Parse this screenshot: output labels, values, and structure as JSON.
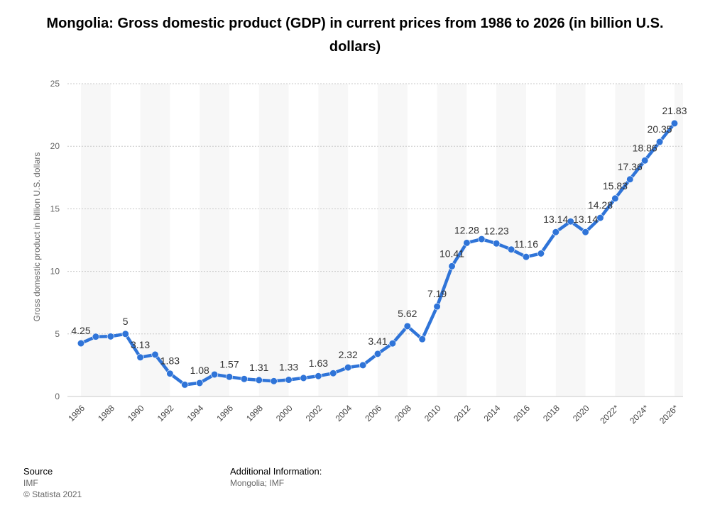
{
  "chart_data": {
    "type": "line",
    "title": "Mongolia: Gross domestic product (GDP) in current prices from 1986 to 2026 (in billion U.S. dollars)",
    "xlabel": "",
    "ylabel": "Gross domestic product in billion U.S. dollars",
    "ylim": [
      0,
      25
    ],
    "yticks": [
      0,
      5,
      10,
      15,
      20,
      25
    ],
    "grid": true,
    "xtick_labels": [
      "1986",
      "1988",
      "1990",
      "1992",
      "1994",
      "1996",
      "1998",
      "2000",
      "2002",
      "2004",
      "2006",
      "2008",
      "2010",
      "2012",
      "2014",
      "2016",
      "2018",
      "2020",
      "2022*",
      "2024*",
      "2026*"
    ],
    "categories": [
      "1986",
      "1987",
      "1988",
      "1989",
      "1990",
      "1991",
      "1992",
      "1993",
      "1994",
      "1995",
      "1996",
      "1997",
      "1998",
      "1999",
      "2000",
      "2001",
      "2002",
      "2003",
      "2004",
      "2005",
      "2006",
      "2007",
      "2008",
      "2009",
      "2010",
      "2011",
      "2012",
      "2013",
      "2014",
      "2015",
      "2016",
      "2017",
      "2018",
      "2019",
      "2020",
      "2021",
      "2022*",
      "2023*",
      "2024*",
      "2025*",
      "2026*"
    ],
    "series": [
      {
        "name": "GDP in billion U.S. dollars",
        "color": "#2f74d8",
        "values": [
          4.25,
          4.78,
          4.8,
          5.0,
          3.13,
          3.35,
          1.83,
          0.94,
          1.08,
          1.76,
          1.57,
          1.4,
          1.31,
          1.23,
          1.33,
          1.48,
          1.63,
          1.86,
          2.32,
          2.5,
          3.41,
          4.24,
          5.62,
          4.58,
          7.19,
          10.41,
          12.28,
          12.58,
          12.23,
          11.75,
          11.16,
          11.43,
          13.14,
          13.99,
          13.14,
          14.28,
          15.83,
          17.36,
          18.86,
          20.35,
          21.83
        ]
      }
    ],
    "data_labels": [
      {
        "x": "1986",
        "text": "4.25"
      },
      {
        "x": "1989",
        "text": "5"
      },
      {
        "x": "1990",
        "text": "3.13"
      },
      {
        "x": "1992",
        "text": "1.83"
      },
      {
        "x": "1994",
        "text": "1.08"
      },
      {
        "x": "1996",
        "text": "1.57"
      },
      {
        "x": "1998",
        "text": "1.31"
      },
      {
        "x": "2000",
        "text": "1.33"
      },
      {
        "x": "2002",
        "text": "1.63"
      },
      {
        "x": "2004",
        "text": "2.32"
      },
      {
        "x": "2006",
        "text": "3.41"
      },
      {
        "x": "2008",
        "text": "5.62"
      },
      {
        "x": "2010",
        "text": "7.19"
      },
      {
        "x": "2011",
        "text": "10.41"
      },
      {
        "x": "2012",
        "text": "12.28"
      },
      {
        "x": "2014",
        "text": "12.23"
      },
      {
        "x": "2016",
        "text": "11.16"
      },
      {
        "x": "2018",
        "text": "13.14"
      },
      {
        "x": "2020",
        "text": "13.14"
      },
      {
        "x": "2021",
        "text": "14.28"
      },
      {
        "x": "2022*",
        "text": "15.83"
      },
      {
        "x": "2023*",
        "text": "17.36"
      },
      {
        "x": "2024*",
        "text": "18.86"
      },
      {
        "x": "2025*",
        "text": "20.35"
      },
      {
        "x": "2026*",
        "text": "21.83"
      }
    ]
  },
  "footer": {
    "source_heading": "Source",
    "source_name": "IMF",
    "copyright": "© Statista 2021",
    "additional_heading": "Additional Information:",
    "additional_text": "Mongolia; IMF"
  }
}
